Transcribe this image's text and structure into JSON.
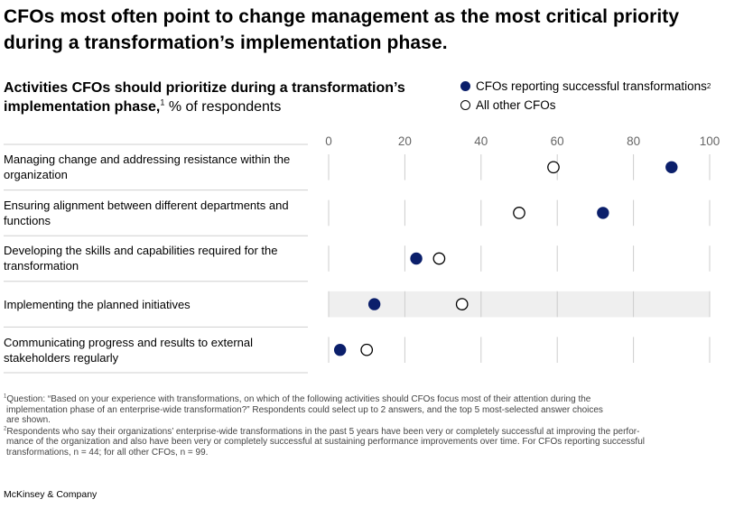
{
  "headline": "CFOs most often point to change management as the most critical priority during a transformation’s implementation phase.",
  "subtitle": {
    "bold": "Activities CFOs should prioritize during a transformation’s implementation phase,",
    "sup": "1",
    "unit": " % of respondents"
  },
  "legend": [
    {
      "label": "CFOs reporting successful transformations",
      "sup": "2",
      "style": "filled"
    },
    {
      "label": "All other CFOs",
      "sup": "",
      "style": "open"
    }
  ],
  "colors": {
    "successful": "#0b1f6b",
    "other": "#ffffff",
    "highlight_band": "#efefef",
    "grid": "#cccccc"
  },
  "chart_data": {
    "type": "scatter",
    "orientation": "horizontal-dot-plot",
    "x_ticks": [
      "0",
      "20",
      "40",
      "60",
      "80",
      "100"
    ],
    "xlim": [
      0,
      100
    ],
    "categories": [
      "Managing change and addressing resistance within the organization",
      "Ensuring alignment between different departments and functions",
      "Developing the skills and capabilities required for the transformation",
      "Implementing the planned initiatives",
      "Communicating progress and results to external stakeholders regularly"
    ],
    "highlighted_category_index": 3,
    "series": [
      {
        "name": "CFOs reporting successful transformations",
        "style": "filled",
        "values": [
          90,
          72,
          23,
          12,
          3
        ]
      },
      {
        "name": "All other CFOs",
        "style": "open",
        "values": [
          59,
          50,
          29,
          35,
          10
        ]
      }
    ]
  },
  "footnotes": {
    "fn1_marker": "1",
    "fn1_lines": [
      "Question: “Based on your experience with transformations, on which of the following activities should CFOs focus most of their attention during the",
      "implementation phase of an enterprise-wide transformation?” Respondents could select up to 2 answers, and the top 5 most-selected answer choices",
      "are shown."
    ],
    "fn2_marker": "2",
    "fn2_lines": [
      "Respondents who say their organizations’ enterprise-wide transformations in the past 5 years have been very or completely successful at improving the perfor-",
      "mance of the organization and also have been very or completely successful at sustaining performance improvements over time. For CFOs reporting successful",
      "transformations, n = 44; for all other CFOs, n = 99."
    ]
  },
  "source": "McKinsey & Company"
}
